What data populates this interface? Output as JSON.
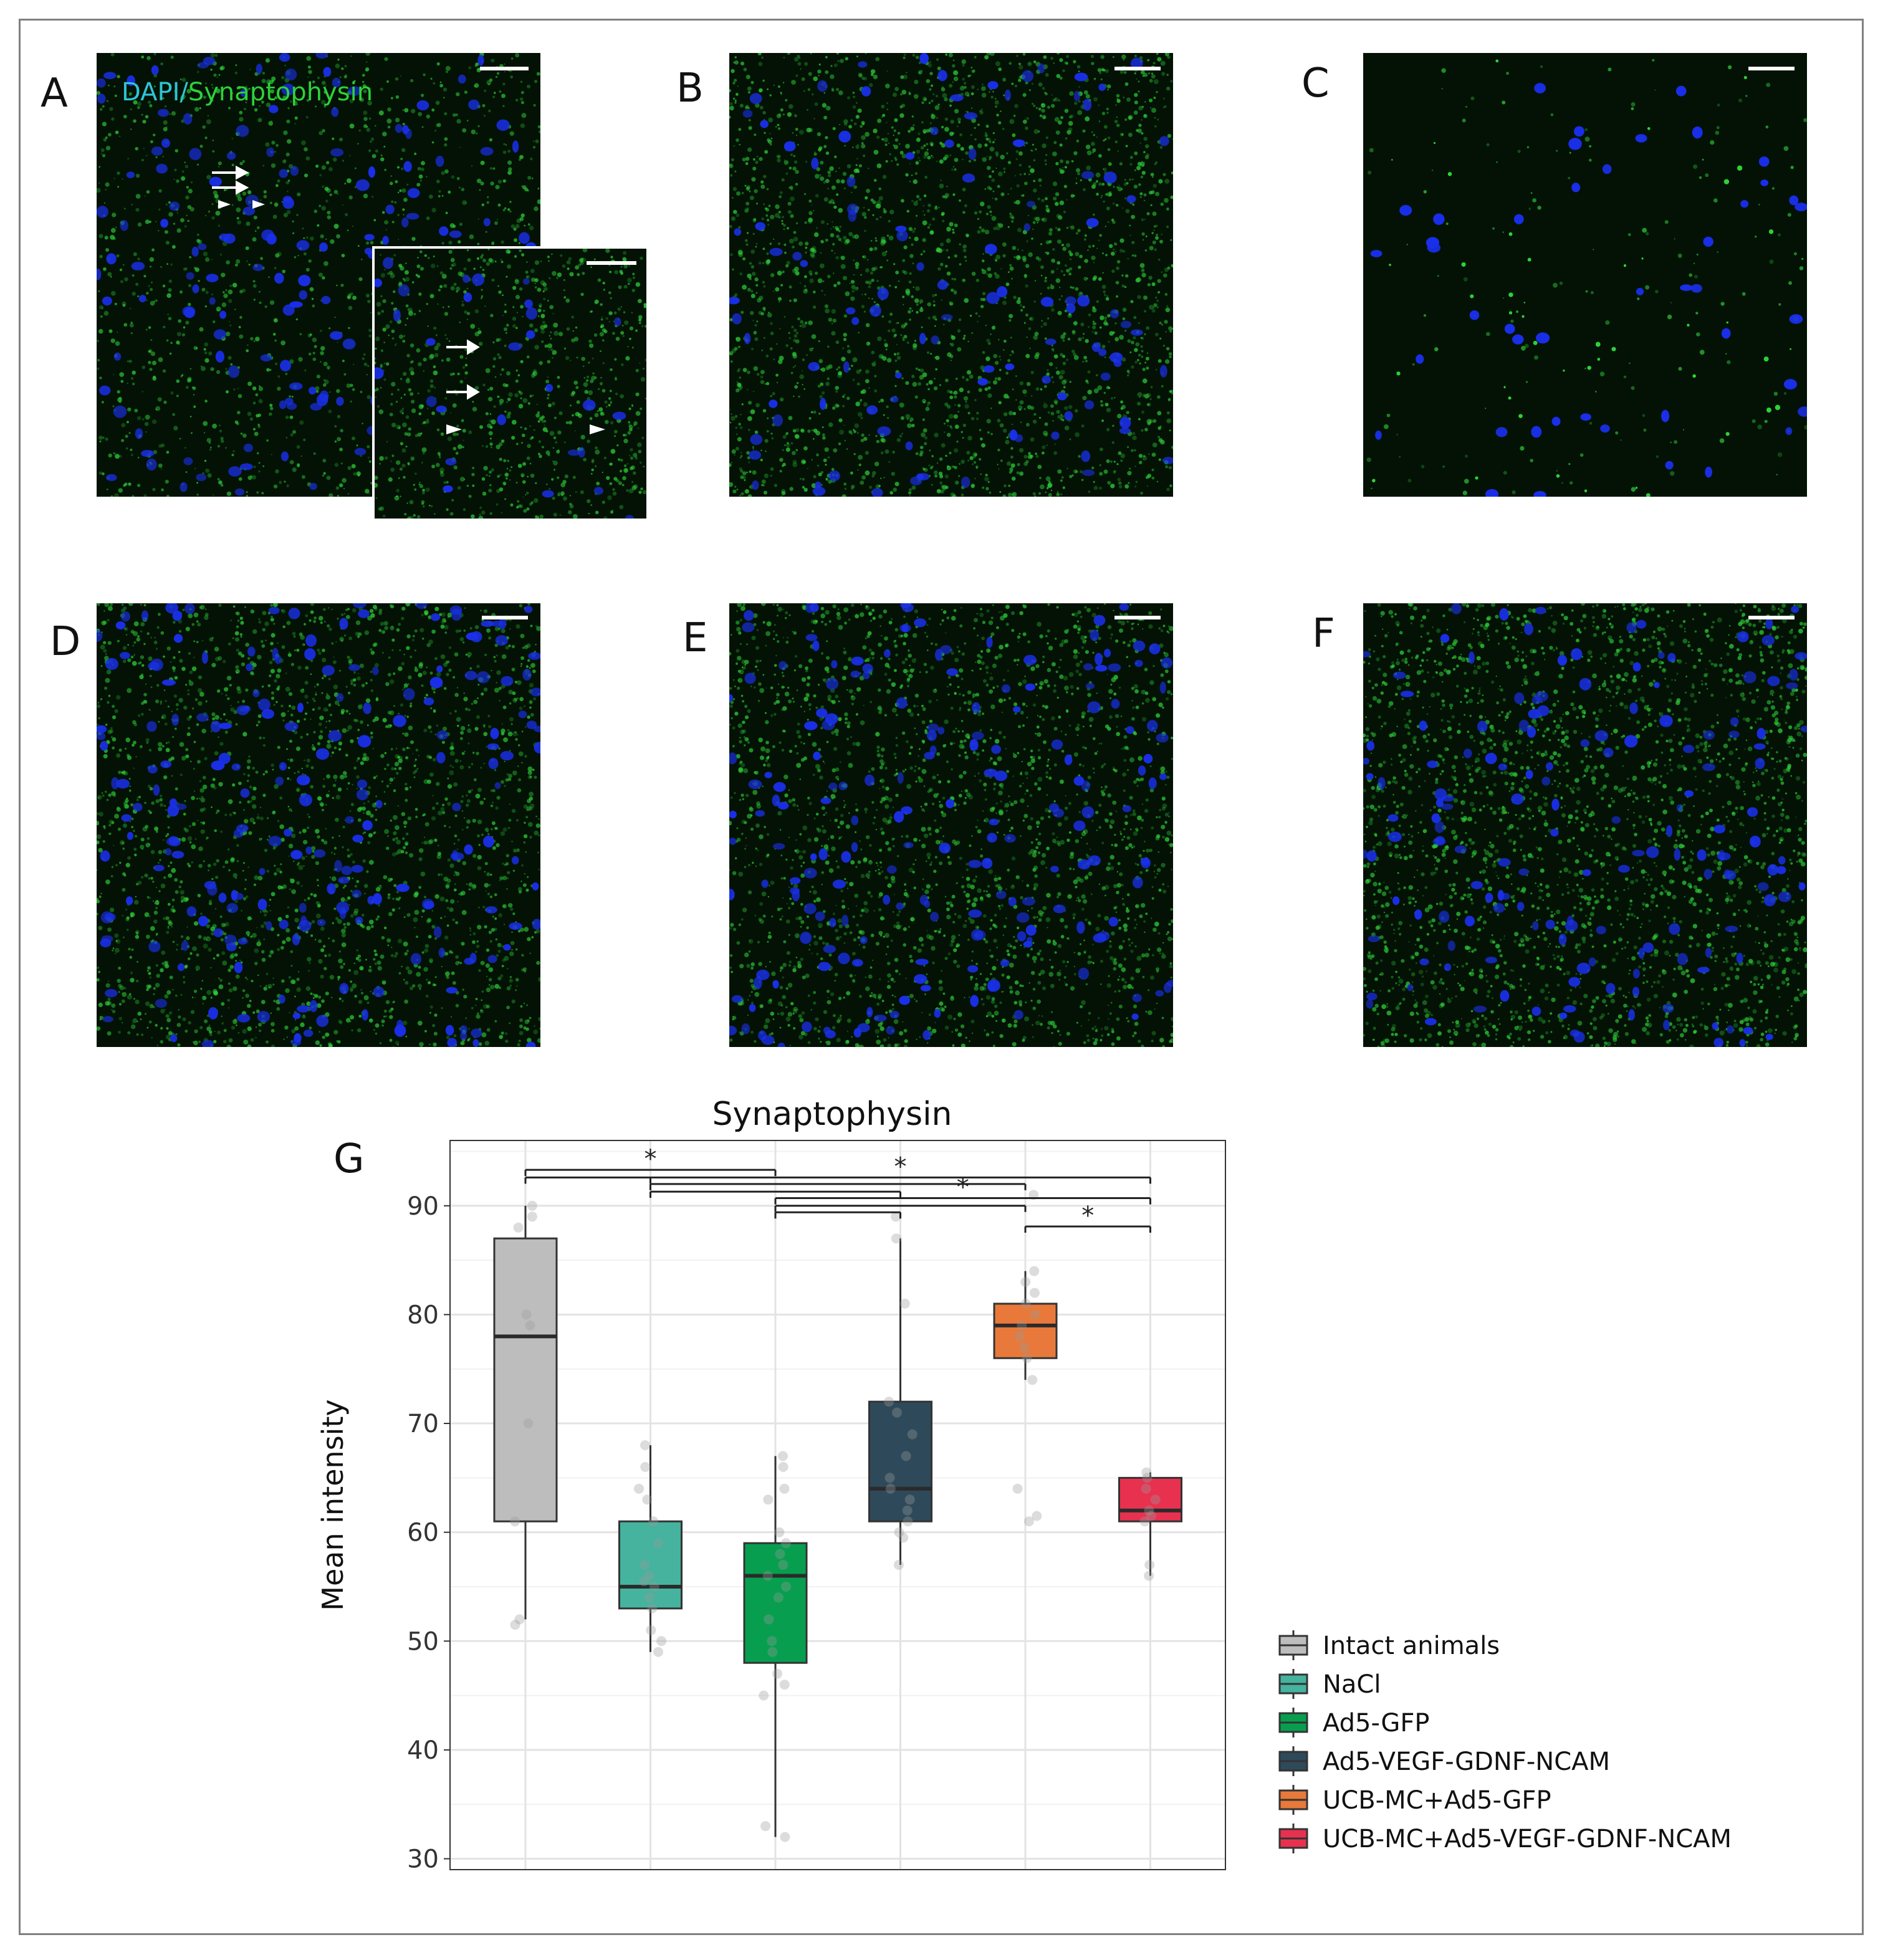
{
  "panels": {
    "labels": [
      "A",
      "B",
      "C",
      "D",
      "E",
      "F",
      "G"
    ],
    "stain_label_dapi": "DAPI/",
    "stain_label_syn": "Synaptophysin",
    "colors": {
      "nuclei": "#1a2fe8",
      "synaptophysin": "#2fd13a",
      "dapi_text": "#2ec4d6"
    }
  },
  "chart_data": {
    "type": "box",
    "title": "Synaptophysin",
    "xlabel": "",
    "ylabel": "Mean intensity",
    "ylim": [
      29,
      96
    ],
    "yticks": [
      30,
      40,
      50,
      60,
      70,
      80,
      90
    ],
    "grid": true,
    "legend_position": "right",
    "series": [
      {
        "name": "Intact animals",
        "color": "#bdbdbd",
        "box": {
          "min": 52,
          "q1": 61,
          "median": 78,
          "q3": 87,
          "max": 90
        },
        "points": [
          90,
          89,
          88,
          80,
          79,
          70,
          61,
          52,
          51.5
        ]
      },
      {
        "name": "NaCl",
        "color": "#45b39d",
        "box": {
          "min": 49,
          "q1": 53,
          "median": 55,
          "q3": 61,
          "max": 68
        },
        "points": [
          68,
          66,
          64,
          63,
          61,
          59,
          57,
          56,
          55.5,
          55,
          54,
          53,
          51,
          50,
          49
        ]
      },
      {
        "name": "Ad5-GFP",
        "color": "#079f4f",
        "box": {
          "min": 32,
          "q1": 48,
          "median": 56,
          "q3": 59,
          "max": 67
        },
        "points": [
          67,
          66,
          64,
          63,
          60,
          59,
          58,
          57,
          56,
          55,
          54,
          52,
          50,
          49,
          47,
          46,
          45,
          33,
          32
        ]
      },
      {
        "name": "Ad5-VEGF-GDNF-NCAM",
        "color": "#2e4a5a",
        "box": {
          "min": 57,
          "q1": 61,
          "median": 64,
          "q3": 72,
          "max": 87
        },
        "points": [
          89,
          87,
          81,
          72,
          71,
          69,
          67,
          65,
          64,
          63,
          62,
          61,
          60,
          59.5,
          57
        ]
      },
      {
        "name": "UCB-MC+Ad5-GFP",
        "color": "#e8793a",
        "box": {
          "min": 74,
          "q1": 76,
          "median": 79,
          "q3": 81,
          "max": 84
        },
        "points": [
          91,
          84,
          83,
          82,
          81,
          80,
          79,
          78,
          77,
          76,
          74,
          64,
          61.5,
          61
        ]
      },
      {
        "name": "UCB-MC+Ad5-VEGF-GDNF-NCAM",
        "color": "#e8314f",
        "box": {
          "min": 56,
          "q1": 61,
          "median": 62,
          "q3": 65,
          "max": 65.5
        },
        "points": [
          65.5,
          65,
          64,
          63,
          62,
          61.5,
          61,
          57,
          56
        ]
      }
    ],
    "significance": [
      {
        "from": 0,
        "to": 1,
        "y": 92.6,
        "label": ""
      },
      {
        "from": 0,
        "to": 2,
        "y": 93.3,
        "label": "*"
      },
      {
        "from": 1,
        "to": 3,
        "y": 91.3,
        "label": ""
      },
      {
        "from": 1,
        "to": 4,
        "y": 92.0,
        "label": ""
      },
      {
        "from": 1,
        "to": 5,
        "y": 92.6,
        "label": "*"
      },
      {
        "from": 2,
        "to": 3,
        "y": 89.4,
        "label": ""
      },
      {
        "from": 2,
        "to": 4,
        "y": 90.0,
        "label": ""
      },
      {
        "from": 2,
        "to": 5,
        "y": 90.7,
        "label": "*"
      },
      {
        "from": 4,
        "to": 5,
        "y": 88.1,
        "label": "*"
      }
    ]
  }
}
